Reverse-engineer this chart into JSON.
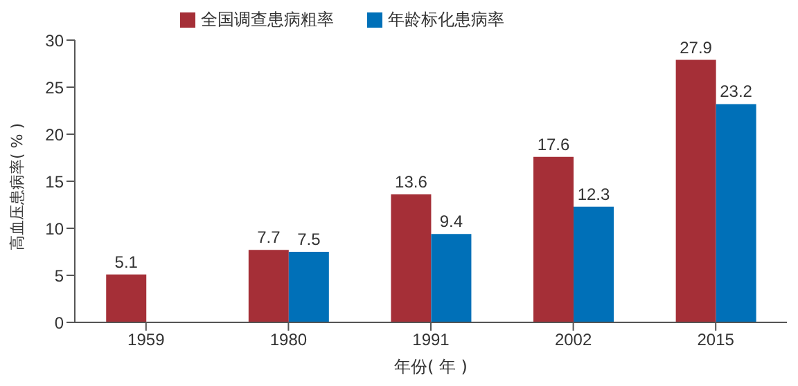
{
  "chart_data": {
    "type": "bar",
    "xlabel": "年份( 年 )",
    "ylabel": "高血压患病率( % )",
    "categories": [
      "1959",
      "1980",
      "1991",
      "2002",
      "2015"
    ],
    "series": [
      {
        "name": "全国调查患病粗率",
        "color": "#a52f37",
        "values": [
          5.1,
          7.7,
          13.6,
          17.6,
          27.9
        ]
      },
      {
        "name": "年龄标化患病率",
        "color": "#0070b8",
        "values": [
          null,
          7.5,
          9.4,
          12.3,
          23.2
        ]
      }
    ],
    "ylim": [
      0,
      30
    ],
    "yticks": [
      0,
      5,
      10,
      15,
      20,
      25,
      30
    ],
    "grid": false,
    "legend": "top left",
    "data_labels": true
  }
}
